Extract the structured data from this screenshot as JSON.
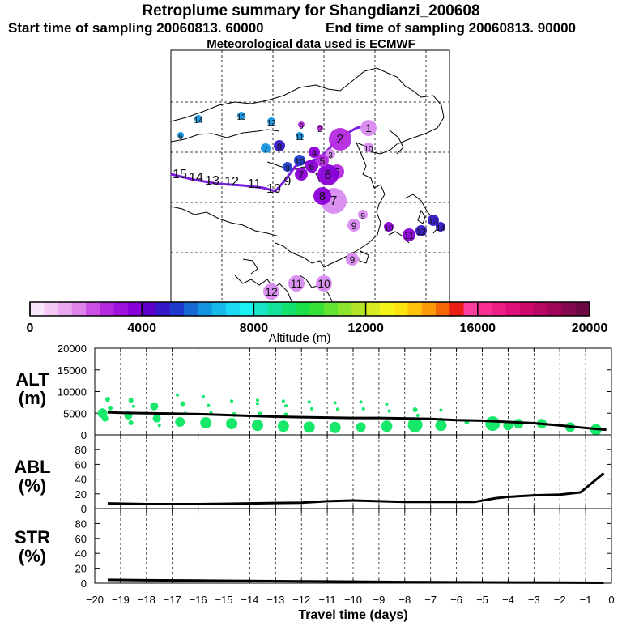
{
  "header": {
    "title": "Retroplume summary for Shangdianzi_200608",
    "start": "Start time of sampling 20060813. 60000",
    "end": "End time of sampling 20060813. 90000",
    "met": "Meteorological data used is ECMWF"
  },
  "colorbar": {
    "label": "Altitude (m)",
    "ticks": [
      "0",
      "4000",
      "8000",
      "12000",
      "16000",
      "20000"
    ],
    "colors": [
      "#f9e6fb",
      "#f2c9f5",
      "#e9a8f0",
      "#df82ea",
      "#cc4fe6",
      "#b52ae0",
      "#9d12dc",
      "#8a00d8",
      "#5d00c9",
      "#3618c6",
      "#1f3bcb",
      "#1769d3",
      "#1394e0",
      "#17b8ea",
      "#1ad9f2",
      "#19f1f2",
      "#17e5c7",
      "#13e29a",
      "#12e06f",
      "#19e048",
      "#35e234",
      "#61e430",
      "#8ce42c",
      "#b4e529",
      "#d9eb23",
      "#f5f419",
      "#fde30f",
      "#fdc209",
      "#fb9906",
      "#f66607",
      "#ec1f16",
      "#ff3fa0",
      "#fb2f92",
      "#ef1f85",
      "#e01279",
      "#cf086c",
      "#b80663",
      "#a0055a",
      "#84084f",
      "#6c0a45"
    ]
  },
  "map": {
    "labels": [
      "1",
      "2",
      "3",
      "4",
      "5",
      "6",
      "7",
      "8",
      "9",
      "10",
      "11",
      "12",
      "13",
      "14",
      "15"
    ],
    "marker_colors": [
      "#d98bf0",
      "#b52ae0",
      "#8a00d8",
      "#3618c6",
      "#1f3bcb",
      "#1394e0"
    ]
  },
  "chart_data": [
    {
      "type": "scatter",
      "name": "ALT",
      "ylabel": "ALT (m)",
      "ylim": [
        0,
        20000
      ],
      "yticks": [
        0,
        5000,
        10000,
        15000,
        20000
      ],
      "line": {
        "x": [
          -19.5,
          -19,
          -18,
          -17,
          -16,
          -15,
          -14,
          -13,
          -12,
          -11,
          -10,
          -9,
          -8,
          -7,
          -6,
          -5,
          -4,
          -3,
          -2,
          -1,
          -0.2
        ],
        "y": [
          5200,
          5100,
          5000,
          4900,
          4800,
          4600,
          4400,
          4200,
          4100,
          4000,
          3900,
          3900,
          3800,
          3700,
          3400,
          3300,
          3000,
          2700,
          2200,
          1600,
          1200
        ]
      },
      "points": [
        {
          "x": -19.7,
          "y": 5000,
          "s": 6
        },
        {
          "x": -19.6,
          "y": 3800,
          "s": 4
        },
        {
          "x": -19.5,
          "y": 8200,
          "s": 3
        },
        {
          "x": -19.4,
          "y": 6200,
          "s": 3
        },
        {
          "x": -18.7,
          "y": 4500,
          "s": 5
        },
        {
          "x": -18.6,
          "y": 8000,
          "s": 3
        },
        {
          "x": -18.6,
          "y": 2800,
          "s": 3
        },
        {
          "x": -18.5,
          "y": 6600,
          "s": 2
        },
        {
          "x": -17.7,
          "y": 6600,
          "s": 5
        },
        {
          "x": -17.6,
          "y": 3800,
          "s": 5
        },
        {
          "x": -17.5,
          "y": 2200,
          "s": 2
        },
        {
          "x": -16.7,
          "y": 3000,
          "s": 6
        },
        {
          "x": -16.8,
          "y": 9200,
          "s": 2
        },
        {
          "x": -16.6,
          "y": 7200,
          "s": 3
        },
        {
          "x": -16.5,
          "y": 5000,
          "s": 2
        },
        {
          "x": -15.7,
          "y": 2800,
          "s": 7
        },
        {
          "x": -15.8,
          "y": 8800,
          "s": 2
        },
        {
          "x": -15.6,
          "y": 6800,
          "s": 2
        },
        {
          "x": -15.5,
          "y": 5200,
          "s": 2
        },
        {
          "x": -14.7,
          "y": 2600,
          "s": 7
        },
        {
          "x": -14.7,
          "y": 7800,
          "s": 2
        },
        {
          "x": -14.6,
          "y": 4700,
          "s": 3
        },
        {
          "x": -13.7,
          "y": 2200,
          "s": 7
        },
        {
          "x": -13.7,
          "y": 8000,
          "s": 2
        },
        {
          "x": -13.7,
          "y": 7200,
          "s": 2
        },
        {
          "x": -13.6,
          "y": 4800,
          "s": 3
        },
        {
          "x": -12.7,
          "y": 2000,
          "s": 7
        },
        {
          "x": -12.7,
          "y": 7800,
          "s": 2
        },
        {
          "x": -12.6,
          "y": 6700,
          "s": 2
        },
        {
          "x": -12.6,
          "y": 4600,
          "s": 3
        },
        {
          "x": -11.7,
          "y": 1800,
          "s": 7
        },
        {
          "x": -11.7,
          "y": 7600,
          "s": 2
        },
        {
          "x": -11.6,
          "y": 6000,
          "s": 2
        },
        {
          "x": -10.7,
          "y": 1700,
          "s": 7
        },
        {
          "x": -10.7,
          "y": 7400,
          "s": 2
        },
        {
          "x": -10.6,
          "y": 5900,
          "s": 2
        },
        {
          "x": -9.7,
          "y": 1800,
          "s": 6
        },
        {
          "x": -9.7,
          "y": 7600,
          "s": 2
        },
        {
          "x": -9.6,
          "y": 6000,
          "s": 2
        },
        {
          "x": -8.7,
          "y": 2000,
          "s": 7
        },
        {
          "x": -8.7,
          "y": 7100,
          "s": 2
        },
        {
          "x": -8.6,
          "y": 5500,
          "s": 2
        },
        {
          "x": -7.6,
          "y": 2300,
          "s": 9
        },
        {
          "x": -7.6,
          "y": 5800,
          "s": 3
        },
        {
          "x": -7.5,
          "y": 4500,
          "s": 2
        },
        {
          "x": -6.6,
          "y": 2200,
          "s": 7
        },
        {
          "x": -6.6,
          "y": 5700,
          "s": 2
        },
        {
          "x": -6.6,
          "y": 3600,
          "s": 2
        },
        {
          "x": -5.6,
          "y": 3000,
          "s": 3
        },
        {
          "x": -4.6,
          "y": 2600,
          "s": 9
        },
        {
          "x": -4.0,
          "y": 2200,
          "s": 6
        },
        {
          "x": -3.6,
          "y": 2600,
          "s": 6
        },
        {
          "x": -2.7,
          "y": 2600,
          "s": 6
        },
        {
          "x": -1.6,
          "y": 1800,
          "s": 6
        },
        {
          "x": -0.6,
          "y": 1200,
          "s": 7
        }
      ]
    },
    {
      "type": "line",
      "name": "ABL",
      "ylabel": "ABL (%)",
      "ylim": [
        0,
        100
      ],
      "yticks": [
        0,
        20,
        40,
        60,
        80
      ],
      "x": [
        -19.5,
        -18,
        -17,
        -16,
        -15,
        -14,
        -13,
        -12,
        -11,
        -10,
        -9,
        -8,
        -7,
        -6,
        -5.3,
        -4.5,
        -4,
        -3,
        -2,
        -1.2,
        -0.3
      ],
      "y": [
        7,
        6,
        6,
        6,
        6.5,
        7,
        7.5,
        8,
        10,
        11,
        10,
        9,
        9,
        9,
        9,
        14,
        16,
        18,
        19,
        22,
        48
      ]
    },
    {
      "type": "line",
      "name": "STR",
      "ylabel": "STR (%)",
      "ylim": [
        0,
        100
      ],
      "yticks": [
        0,
        20,
        40,
        60,
        80
      ],
      "x": [
        -19.5,
        -18,
        -16,
        -14,
        -12,
        -10,
        -8,
        -6,
        -4,
        -2,
        -0.3
      ],
      "y": [
        4.5,
        4,
        3.5,
        3,
        2.5,
        2,
        1.5,
        1.2,
        1,
        0.8,
        0.5
      ]
    }
  ],
  "xaxis": {
    "label": "Travel time (days)",
    "ticks": [
      "−20",
      "−19",
      "−18",
      "−17",
      "−16",
      "−15",
      "−14",
      "−13",
      "−12",
      "−11",
      "−10",
      "−9",
      "−8",
      "−7",
      "−6",
      "−5",
      "−4",
      "−3",
      "−2",
      "−1",
      "0"
    ],
    "xlim": [
      -20,
      0
    ]
  },
  "panel_labels": {
    "alt_top": "ALT",
    "alt_bot": "(m)",
    "abl_top": "ABL",
    "abl_bot": "(%)",
    "str_top": "STR",
    "str_bot": "(%)"
  }
}
